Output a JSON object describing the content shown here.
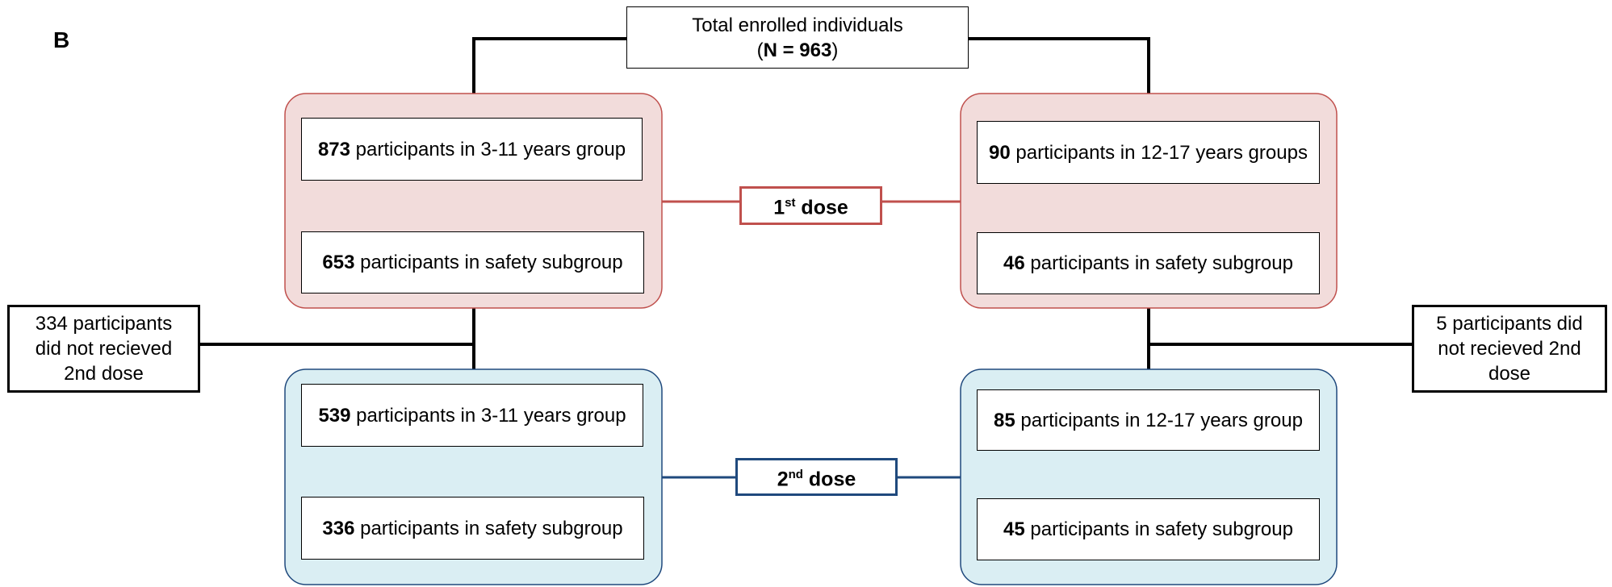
{
  "panel_label": "B",
  "enrolled": {
    "title": "Total enrolled individuals",
    "count": [
      "(",
      "N = 963",
      ")"
    ]
  },
  "first_dose": {
    "label": {
      "ordinal": "1",
      "suffix": "st",
      "text": "dose"
    },
    "left": [
      {
        "count": "873",
        "text": "participants in 3-11 years group"
      },
      {
        "count": "653",
        "text": "participants in safety subgroup"
      }
    ],
    "right": [
      {
        "count": "90",
        "text": "participants in 12-17 years groups"
      },
      {
        "count": "46",
        "text": "participants in safety subgroup"
      }
    ]
  },
  "second_dose": {
    "label": {
      "ordinal": "2",
      "suffix": "nd",
      "text": "dose"
    },
    "left": [
      {
        "count": "539",
        "text": "participants in 3-11 years group"
      },
      {
        "count": "336",
        "text": "participants in safety subgroup"
      }
    ],
    "right": [
      {
        "count": "85",
        "text": "participants in 12-17 years group"
      },
      {
        "count": "45",
        "text": "participants in safety subgroup"
      }
    ]
  },
  "dropouts": {
    "left": "334 participants did not recieved 2nd dose",
    "right": "5 participants did not recieved 2nd dose"
  }
}
